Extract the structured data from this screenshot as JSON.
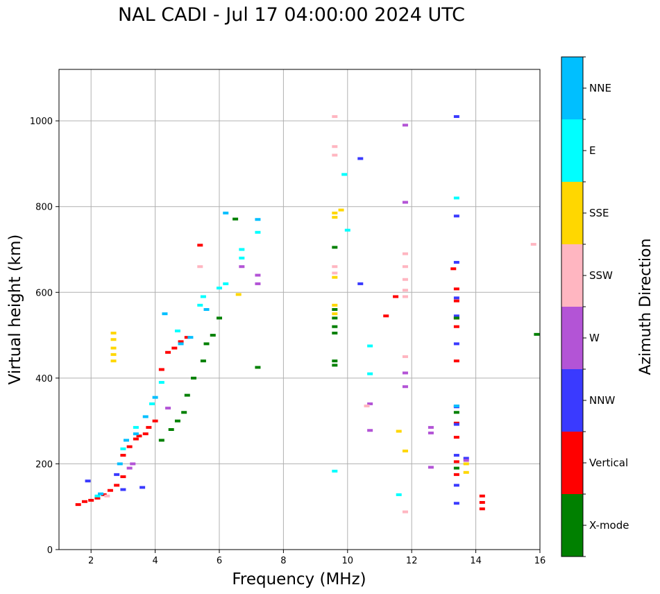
{
  "chart_data": {
    "type": "scatter",
    "title": "NAL CADI - Jul 17 04:00:00 2024 UTC",
    "xlabel": "Frequency (MHz)",
    "ylabel": "Virtual height (km)",
    "xlim": [
      1,
      16
    ],
    "ylim": [
      0,
      1120
    ],
    "xticks": [
      2,
      4,
      6,
      8,
      10,
      12,
      14,
      16
    ],
    "yticks": [
      0,
      200,
      400,
      600,
      800,
      1000
    ],
    "grid": true,
    "colorbar": {
      "label": "Azimuth Direction",
      "categories": [
        {
          "name": "X-mode",
          "color": "#008000"
        },
        {
          "name": "Vertical",
          "color": "#ff0000"
        },
        {
          "name": "NNW",
          "color": "#3a3aff"
        },
        {
          "name": "W",
          "color": "#b354d6"
        },
        {
          "name": "SSW",
          "color": "#ffb6c1"
        },
        {
          "name": "SSE",
          "color": "#ffd700"
        },
        {
          "name": "E",
          "color": "#00ffff"
        },
        {
          "name": "NNE",
          "color": "#00bfff"
        }
      ]
    },
    "series": [
      {
        "name": "Vertical",
        "points": [
          [
            1.6,
            105
          ],
          [
            1.8,
            112
          ],
          [
            2.0,
            115
          ],
          [
            2.2,
            120
          ],
          [
            2.4,
            128
          ],
          [
            2.6,
            138
          ],
          [
            2.8,
            150
          ],
          [
            3.0,
            170
          ],
          [
            3.0,
            220
          ],
          [
            3.2,
            240
          ],
          [
            3.4,
            258
          ],
          [
            3.5,
            265
          ],
          [
            3.7,
            270
          ],
          [
            3.8,
            285
          ],
          [
            4.0,
            300
          ],
          [
            4.2,
            420
          ],
          [
            4.4,
            460
          ],
          [
            4.6,
            470
          ],
          [
            4.8,
            485
          ],
          [
            5.0,
            495
          ],
          [
            5.4,
            710
          ],
          [
            13.3,
            655
          ],
          [
            13.4,
            608
          ],
          [
            13.4,
            580
          ],
          [
            13.4,
            540
          ],
          [
            13.4,
            520
          ],
          [
            13.4,
            440
          ],
          [
            13.4,
            335
          ],
          [
            13.4,
            295
          ],
          [
            13.4,
            262
          ],
          [
            13.4,
            205
          ],
          [
            13.4,
            175
          ],
          [
            14.2,
            125
          ],
          [
            14.2,
            110
          ],
          [
            14.2,
            95
          ],
          [
            11.5,
            590
          ],
          [
            11.2,
            545
          ]
        ]
      },
      {
        "name": "NNW",
        "points": [
          [
            1.9,
            160
          ],
          [
            2.8,
            175
          ],
          [
            3.0,
            140
          ],
          [
            3.6,
            145
          ],
          [
            10.4,
            912
          ],
          [
            10.4,
            620
          ],
          [
            13.4,
            1010
          ],
          [
            13.4,
            778
          ],
          [
            13.4,
            670
          ],
          [
            13.4,
            587
          ],
          [
            13.4,
            545
          ],
          [
            13.4,
            480
          ],
          [
            13.4,
            333
          ],
          [
            13.4,
            292
          ],
          [
            13.4,
            220
          ],
          [
            13.4,
            150
          ],
          [
            13.4,
            108
          ],
          [
            13.7,
            213
          ]
        ]
      },
      {
        "name": "X-mode",
        "points": [
          [
            4.2,
            255
          ],
          [
            4.5,
            280
          ],
          [
            4.7,
            300
          ],
          [
            4.9,
            320
          ],
          [
            5.0,
            360
          ],
          [
            5.2,
            400
          ],
          [
            5.5,
            440
          ],
          [
            5.6,
            480
          ],
          [
            5.8,
            500
          ],
          [
            6.0,
            540
          ],
          [
            6.5,
            771
          ],
          [
            7.2,
            425
          ],
          [
            9.6,
            705
          ],
          [
            9.6,
            560
          ],
          [
            9.6,
            540
          ],
          [
            9.6,
            520
          ],
          [
            9.6,
            505
          ],
          [
            9.6,
            440
          ],
          [
            9.6,
            430
          ],
          [
            13.4,
            540
          ],
          [
            13.4,
            190
          ],
          [
            13.4,
            320
          ],
          [
            15.9,
            502
          ]
        ]
      },
      {
        "name": "W",
        "points": [
          [
            3.2,
            190
          ],
          [
            3.3,
            200
          ],
          [
            4.4,
            330
          ],
          [
            6.7,
            660
          ],
          [
            7.2,
            640
          ],
          [
            7.2,
            620
          ],
          [
            10.7,
            340
          ],
          [
            10.7,
            278
          ],
          [
            11.8,
            412
          ],
          [
            11.8,
            380
          ],
          [
            11.8,
            810
          ],
          [
            11.8,
            990
          ],
          [
            12.6,
            285
          ],
          [
            12.6,
            272
          ],
          [
            12.6,
            192
          ],
          [
            13.7,
            208
          ]
        ]
      },
      {
        "name": "SSW",
        "points": [
          [
            2.5,
            125
          ],
          [
            5.4,
            660
          ],
          [
            9.6,
            1010
          ],
          [
            9.6,
            940
          ],
          [
            9.6,
            920
          ],
          [
            9.6,
            660
          ],
          [
            9.6,
            645
          ],
          [
            10.6,
            335
          ],
          [
            11.8,
            690
          ],
          [
            11.8,
            660
          ],
          [
            11.8,
            630
          ],
          [
            11.8,
            605
          ],
          [
            11.8,
            590
          ],
          [
            11.8,
            450
          ],
          [
            11.8,
            88
          ],
          [
            15.8,
            712
          ]
        ]
      },
      {
        "name": "SSE",
        "points": [
          [
            2.7,
            505
          ],
          [
            2.7,
            490
          ],
          [
            2.7,
            470
          ],
          [
            2.7,
            455
          ],
          [
            2.7,
            440
          ],
          [
            6.6,
            595
          ],
          [
            9.6,
            785
          ],
          [
            9.6,
            775
          ],
          [
            9.6,
            635
          ],
          [
            9.6,
            570
          ],
          [
            9.6,
            550
          ],
          [
            9.8,
            792
          ],
          [
            11.6,
            276
          ],
          [
            11.8,
            230
          ],
          [
            13.7,
            180
          ],
          [
            13.7,
            200
          ]
        ]
      },
      {
        "name": "E",
        "points": [
          [
            2.2,
            125
          ],
          [
            3.0,
            235
          ],
          [
            3.4,
            285
          ],
          [
            3.9,
            340
          ],
          [
            4.2,
            390
          ],
          [
            4.7,
            510
          ],
          [
            5.4,
            570
          ],
          [
            5.5,
            590
          ],
          [
            6.0,
            610
          ],
          [
            6.2,
            620
          ],
          [
            6.7,
            700
          ],
          [
            6.7,
            680
          ],
          [
            7.2,
            740
          ],
          [
            9.6,
            183
          ],
          [
            9.9,
            875
          ],
          [
            10.0,
            745
          ],
          [
            10.7,
            475
          ],
          [
            10.7,
            410
          ],
          [
            11.6,
            128
          ],
          [
            13.4,
            820
          ]
        ]
      },
      {
        "name": "NNE",
        "points": [
          [
            2.3,
            130
          ],
          [
            2.9,
            200
          ],
          [
            3.1,
            255
          ],
          [
            3.4,
            270
          ],
          [
            3.7,
            310
          ],
          [
            4.0,
            355
          ],
          [
            4.3,
            550
          ],
          [
            4.8,
            480
          ],
          [
            5.1,
            495
          ],
          [
            5.6,
            560
          ],
          [
            6.2,
            785
          ],
          [
            7.2,
            770
          ],
          [
            13.4,
            335
          ]
        ]
      }
    ]
  }
}
